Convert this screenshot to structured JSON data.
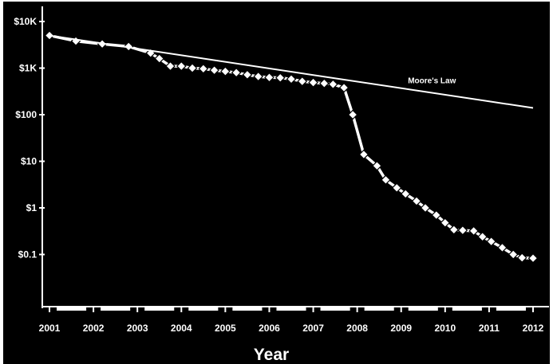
{
  "chart_data": {
    "type": "line",
    "title": "",
    "xlabel": "Year",
    "ylabel": "",
    "y_scale": "log",
    "xlim": [
      2001,
      2012
    ],
    "ylim": [
      0.01,
      10000
    ],
    "x_ticks": [
      "2001",
      "2002",
      "2003",
      "2004",
      "2005",
      "2006",
      "2007",
      "2008",
      "2009",
      "2010",
      "2011",
      "2012"
    ],
    "y_ticks": [
      {
        "value": 10000,
        "label": "$10K"
      },
      {
        "value": 1000,
        "label": "$1K"
      },
      {
        "value": 100,
        "label": "$100"
      },
      {
        "value": 10,
        "label": "$10"
      },
      {
        "value": 1,
        "label": "$1"
      },
      {
        "value": 0.1,
        "label": "$0.1"
      }
    ],
    "grid": false,
    "colors": {
      "background": "#000000",
      "foreground": "#ffffff",
      "marker_fill": "#ffffff",
      "marker_stroke": "#000000"
    },
    "series": [
      {
        "marker": "diamond",
        "points": [
          [
            2001.0,
            5000
          ],
          [
            2001.6,
            3800
          ],
          [
            2002.2,
            3300
          ],
          [
            2002.8,
            2900
          ],
          [
            2003.3,
            2100
          ],
          [
            2003.5,
            1600
          ],
          [
            2003.75,
            1100
          ],
          [
            2004.0,
            1100
          ],
          [
            2004.25,
            1000
          ],
          [
            2004.5,
            970
          ],
          [
            2004.75,
            900
          ],
          [
            2005.0,
            850
          ],
          [
            2005.25,
            800
          ],
          [
            2005.5,
            720
          ],
          [
            2005.75,
            660
          ],
          [
            2006.0,
            630
          ],
          [
            2006.25,
            620
          ],
          [
            2006.5,
            580
          ],
          [
            2006.75,
            520
          ],
          [
            2007.0,
            490
          ],
          [
            2007.25,
            470
          ],
          [
            2007.45,
            450
          ],
          [
            2007.7,
            380
          ],
          [
            2007.9,
            100
          ],
          [
            2008.15,
            14
          ],
          [
            2008.45,
            8
          ],
          [
            2008.65,
            4
          ],
          [
            2008.9,
            2.7
          ],
          [
            2009.1,
            2
          ],
          [
            2009.35,
            1.4
          ],
          [
            2009.55,
            1.0
          ],
          [
            2009.8,
            0.7
          ],
          [
            2010.0,
            0.48
          ],
          [
            2010.2,
            0.34
          ],
          [
            2010.4,
            0.33
          ],
          [
            2010.65,
            0.32
          ],
          [
            2010.85,
            0.24
          ],
          [
            2011.05,
            0.19
          ],
          [
            2011.3,
            0.14
          ],
          [
            2011.55,
            0.1
          ],
          [
            2011.75,
            0.085
          ],
          [
            2012.0,
            0.083
          ]
        ]
      },
      {
        "name": "Moore's Law",
        "marker": "none",
        "points": [
          [
            2001.0,
            5000
          ],
          [
            2012.0,
            140
          ]
        ]
      }
    ]
  }
}
